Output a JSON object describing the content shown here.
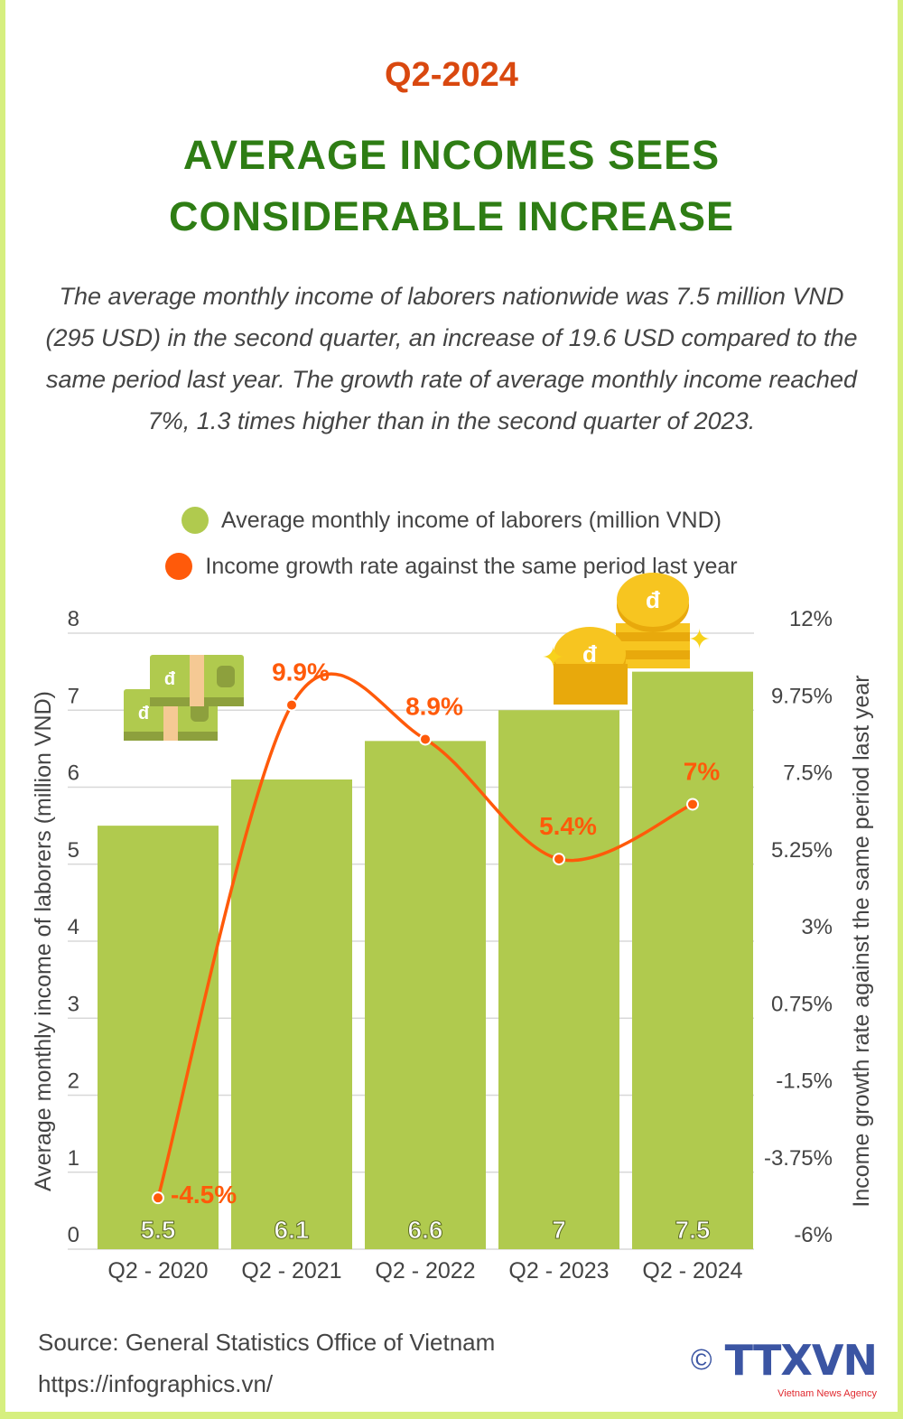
{
  "header": {
    "period": "Q2-2024",
    "title_line1": "AVERAGE INCOMES SEES",
    "title_line2": "CONSIDERABLE INCREASE",
    "description": "The average monthly income of laborers nationwide was 7.5 million VND (295 USD) in the second quarter, an increase of 19.6 USD compared to the same period last year. The growth rate of average monthly income reached 7%, 1.3 times higher than in the second quarter of 2023."
  },
  "colors": {
    "bar": "#b0ca4e",
    "line": "#ff5a0a",
    "title": "#2e7d14",
    "period": "#d9480f",
    "frame": "#d6ef7f"
  },
  "chart_data": {
    "type": "bar+line",
    "categories": [
      "Q2 - 2020",
      "Q2 - 2021",
      "Q2 - 2022",
      "Q2 - 2023",
      "Q2 - 2024"
    ],
    "series": [
      {
        "name": "Average monthly income of laborers (million VND)",
        "type": "bar",
        "axis": "left",
        "values": [
          5.5,
          6.1,
          6.6,
          7,
          7.5
        ],
        "labels": [
          "5.5",
          "6.1",
          "6.6",
          "7",
          "7.5"
        ]
      },
      {
        "name": "Income growth rate against the same period last year",
        "type": "line",
        "axis": "right",
        "values": [
          -4.5,
          9.9,
          8.9,
          5.4,
          7
        ],
        "labels": [
          "-4.5%",
          "9.9%",
          "8.9%",
          "5.4%",
          "7%"
        ]
      }
    ],
    "ylabel_left": "Average monthly income of laborers (million VND)",
    "ylabel_right": "Income growth rate against the same period last year",
    "ylim_left": [
      0,
      8
    ],
    "ylim_right": [
      -6,
      12
    ],
    "yticks_left": [
      "0",
      "1",
      "2",
      "3",
      "4",
      "5",
      "6",
      "7",
      "8"
    ],
    "yticks_right": [
      "-6%",
      "-3.75%",
      "-1.5%",
      "0.75%",
      "3%",
      "5.25%",
      "7.5%",
      "9.75%",
      "12%"
    ],
    "grid": true,
    "legend_position": "top-center"
  },
  "footer": {
    "source": "Source: General Statistics Office of Vietnam",
    "url": "https://infographics.vn/",
    "logo_text": "TTXVN",
    "logo_sub": "Vietnam News Agency",
    "copyright": "©"
  }
}
